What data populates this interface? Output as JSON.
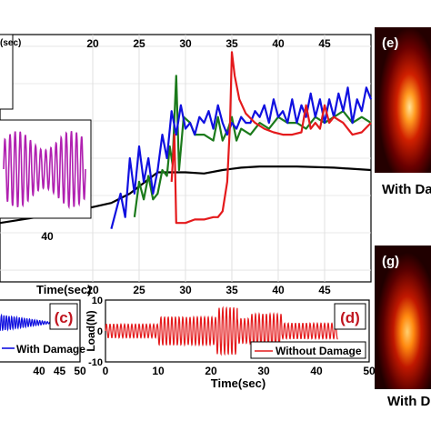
{
  "colors": {
    "red": "#e41a1c",
    "green": "#1b7a1b",
    "blue": "#1010e0",
    "black": "#000000",
    "magenta": "#b020b0",
    "thermal_dark": "#2a0000",
    "thermal_hot": "#ffd070"
  },
  "chart_data": [
    {
      "type": "line",
      "id": "main",
      "xlabel": "Time(sec)",
      "xlim": [
        10,
        50
      ],
      "x_ticks": [
        "20",
        "25",
        "30",
        "35",
        "40",
        "45"
      ],
      "top_ticks": [
        "20",
        "25",
        "30",
        "35",
        "40",
        "45"
      ],
      "series": [
        {
          "color_key": "black",
          "points": [
            [
              10,
              -0.55
            ],
            [
              14,
              -0.5
            ],
            [
              18,
              -0.45
            ],
            [
              22,
              -0.38
            ],
            [
              24,
              -0.3
            ],
            [
              26,
              -0.18
            ],
            [
              27,
              -0.12
            ],
            [
              28,
              -0.12
            ],
            [
              30,
              -0.12
            ],
            [
              32,
              -0.13
            ],
            [
              34,
              -0.1
            ],
            [
              36,
              -0.08
            ],
            [
              38,
              -0.07
            ],
            [
              42,
              -0.07
            ],
            [
              46,
              -0.08
            ],
            [
              50,
              -0.1
            ]
          ]
        },
        {
          "color_key": "green",
          "points": [
            [
              24.5,
              -0.5
            ],
            [
              25,
              -0.2
            ],
            [
              25.5,
              -0.35
            ],
            [
              26,
              -0.15
            ],
            [
              26.5,
              -0.35
            ],
            [
              27,
              -0.3
            ],
            [
              27.5,
              -0.1
            ],
            [
              28,
              -0.15
            ],
            [
              28.3,
              0.1
            ],
            [
              28.6,
              -0.05
            ],
            [
              29,
              0.7
            ],
            [
              29.3,
              -0.1
            ],
            [
              29.8,
              0.35
            ],
            [
              30.5,
              0.3
            ],
            [
              31,
              0.2
            ],
            [
              32,
              0.2
            ],
            [
              33,
              0.15
            ],
            [
              33.5,
              0.35
            ],
            [
              34,
              0.15
            ],
            [
              34.6,
              0.25
            ],
            [
              35,
              0.35
            ],
            [
              35.5,
              0.15
            ],
            [
              36,
              0.25
            ],
            [
              37,
              0.2
            ],
            [
              38,
              0.3
            ],
            [
              39,
              0.25
            ],
            [
              40,
              0.35
            ],
            [
              41,
              0.3
            ],
            [
              42,
              0.3
            ],
            [
              43,
              0.25
            ],
            [
              44,
              0.35
            ],
            [
              45,
              0.3
            ],
            [
              46,
              0.35
            ],
            [
              47,
              0.4
            ],
            [
              48,
              0.3
            ],
            [
              49,
              0.35
            ],
            [
              50,
              0.3
            ]
          ]
        },
        {
          "color_key": "blue",
          "points": [
            [
              22,
              -0.6
            ],
            [
              23,
              -0.3
            ],
            [
              23.5,
              -0.5
            ],
            [
              24,
              0.0
            ],
            [
              24.5,
              -0.3
            ],
            [
              25,
              0.1
            ],
            [
              25.5,
              -0.2
            ],
            [
              26,
              0.0
            ],
            [
              26.5,
              -0.3
            ],
            [
              27,
              -0.1
            ],
            [
              27.5,
              0.2
            ],
            [
              28,
              0.0
            ],
            [
              28.5,
              0.4
            ],
            [
              29,
              0.2
            ],
            [
              29.5,
              0.45
            ],
            [
              30,
              0.25
            ],
            [
              30.5,
              0.3
            ],
            [
              31,
              0.2
            ],
            [
              31.5,
              0.35
            ],
            [
              32,
              0.3
            ],
            [
              32.5,
              0.4
            ],
            [
              33,
              0.25
            ],
            [
              33.5,
              0.45
            ],
            [
              34,
              0.3
            ],
            [
              34.5,
              0.2
            ],
            [
              35,
              0.3
            ],
            [
              35.5,
              0.25
            ],
            [
              36,
              0.35
            ],
            [
              36.5,
              0.3
            ],
            [
              37,
              0.3
            ],
            [
              37.5,
              0.4
            ],
            [
              38,
              0.35
            ],
            [
              38.5,
              0.45
            ],
            [
              39,
              0.3
            ],
            [
              39.5,
              0.5
            ],
            [
              40,
              0.35
            ],
            [
              40.5,
              0.4
            ],
            [
              41,
              0.3
            ],
            [
              41.5,
              0.5
            ],
            [
              42,
              0.3
            ],
            [
              42.5,
              0.45
            ],
            [
              43,
              0.35
            ],
            [
              43.5,
              0.55
            ],
            [
              44,
              0.35
            ],
            [
              44.5,
              0.5
            ],
            [
              45,
              0.3
            ],
            [
              45.5,
              0.5
            ],
            [
              46,
              0.35
            ],
            [
              46.5,
              0.55
            ],
            [
              47,
              0.4
            ],
            [
              47.5,
              0.6
            ],
            [
              48,
              0.3
            ],
            [
              48.5,
              0.5
            ],
            [
              49,
              0.4
            ],
            [
              49.5,
              0.6
            ],
            [
              50,
              0.5
            ]
          ]
        },
        {
          "color_key": "red",
          "points": [
            [
              28.5,
              -0.2
            ],
            [
              28.8,
              0.2
            ],
            [
              29,
              -0.55
            ],
            [
              30,
              -0.55
            ],
            [
              31,
              -0.52
            ],
            [
              32,
              -0.52
            ],
            [
              33,
              -0.5
            ],
            [
              33.5,
              -0.5
            ],
            [
              34,
              -0.45
            ],
            [
              34.5,
              -0.2
            ],
            [
              34.8,
              0.3
            ],
            [
              35,
              0.9
            ],
            [
              35.3,
              0.7
            ],
            [
              35.8,
              0.5
            ],
            [
              36.5,
              0.38
            ],
            [
              37.5,
              0.3
            ],
            [
              38.5,
              0.25
            ],
            [
              39.5,
              0.22
            ],
            [
              40.5,
              0.2
            ],
            [
              41.5,
              0.2
            ],
            [
              42.5,
              0.22
            ],
            [
              43,
              0.45
            ],
            [
              43.5,
              0.25
            ],
            [
              44,
              0.3
            ],
            [
              44.5,
              0.25
            ],
            [
              45,
              0.45
            ],
            [
              45.5,
              0.3
            ],
            [
              46,
              0.35
            ],
            [
              47,
              0.3
            ],
            [
              48,
              0.2
            ],
            [
              49,
              0.22
            ],
            [
              50,
              0.3
            ]
          ]
        }
      ]
    },
    {
      "type": "line",
      "id": "inset_magenta",
      "x_ticks": [
        "40"
      ],
      "color_key": "magenta",
      "amplitude": 1,
      "cycles": 16
    },
    {
      "type": "line",
      "id": "panel_c",
      "label": "(c)",
      "xlim": [
        30,
        50
      ],
      "x_ticks": [
        "40",
        "45",
        "50"
      ],
      "legend": "With Damage",
      "color_key": "blue"
    },
    {
      "type": "line",
      "id": "panel_d",
      "label": "(d)",
      "xlabel": "Time(sec)",
      "ylabel": "Load(N)",
      "xlim": [
        0,
        50
      ],
      "ylim": [
        -10,
        10
      ],
      "x_ticks": [
        "0",
        "10",
        "20",
        "30",
        "40",
        "50"
      ],
      "y_ticks": [
        "10",
        "0",
        "-10"
      ],
      "legend": "Without Damage",
      "color_key": "red",
      "bursts": [
        {
          "start": 0,
          "end": 10,
          "amp": 2.2
        },
        {
          "start": 10,
          "end": 21,
          "amp": 4.5
        },
        {
          "start": 21,
          "end": 25,
          "amp": 7.5
        },
        {
          "start": 25,
          "end": 27.5,
          "amp": 4.0
        },
        {
          "start": 27.5,
          "end": 33.5,
          "amp": 5.5
        },
        {
          "start": 33.5,
          "end": 44,
          "amp": 2.5
        }
      ]
    }
  ],
  "legend_fragment": {
    "text": "(sec)"
  },
  "thermal_panels": [
    {
      "label": "(e)",
      "caption": "With Da"
    },
    {
      "label": "(g)",
      "caption": "With D"
    }
  ]
}
